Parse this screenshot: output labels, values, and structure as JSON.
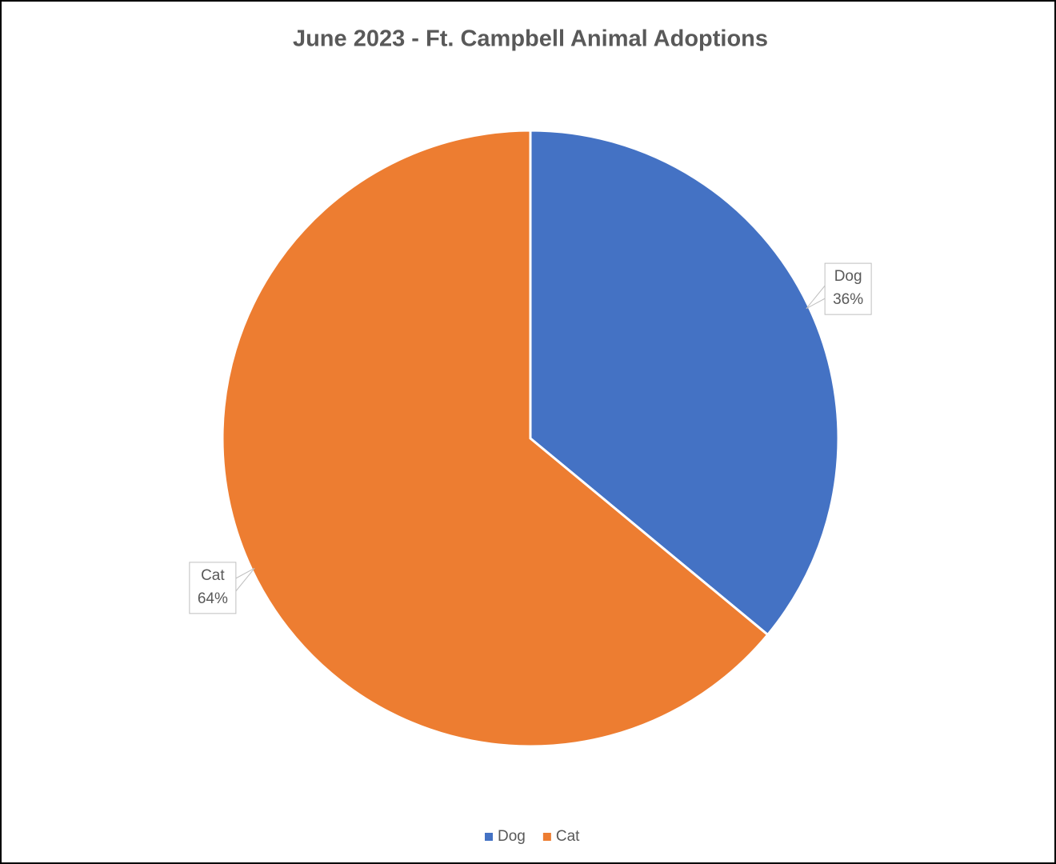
{
  "chart_data": {
    "type": "pie",
    "title": "June 2023 - Ft. Campbell Animal Adoptions",
    "categories": [
      "Dog",
      "Cat"
    ],
    "values": [
      36,
      64
    ],
    "value_labels": [
      "36%",
      "64%"
    ],
    "colors": [
      "#4472c4",
      "#ed7d31"
    ],
    "legend": "bottom"
  }
}
